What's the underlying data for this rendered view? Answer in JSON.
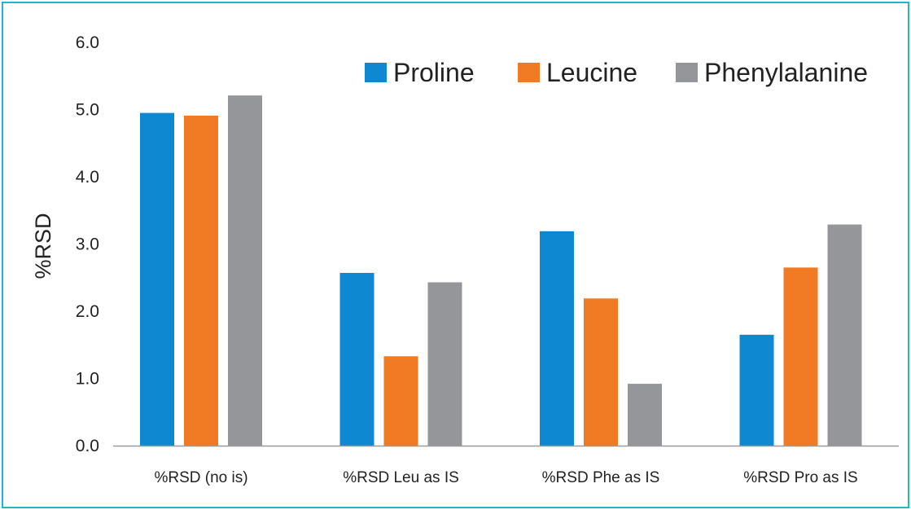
{
  "chart_data": {
    "type": "bar",
    "title": "",
    "xlabel": "",
    "ylabel": "%RSD",
    "ylim": [
      0,
      6
    ],
    "yticks": [
      "0.0",
      "1.0",
      "2.0",
      "3.0",
      "4.0",
      "5.0",
      "6.0"
    ],
    "grid": false,
    "legend_position": "top-right",
    "categories": [
      "%RSD (no is)",
      "%RSD Leu as IS",
      "%RSD Phe as IS",
      "%RSD Pro as IS"
    ],
    "series": [
      {
        "name": "Proline",
        "color": "#0d88d1",
        "values": [
          4.95,
          2.57,
          3.19,
          1.65
        ]
      },
      {
        "name": "Leucine",
        "color": "#f07b24",
        "values": [
          4.91,
          1.33,
          2.19,
          2.65
        ]
      },
      {
        "name": "Phenylalanine",
        "color": "#959699",
        "values": [
          5.21,
          2.43,
          0.92,
          3.29
        ]
      }
    ]
  }
}
